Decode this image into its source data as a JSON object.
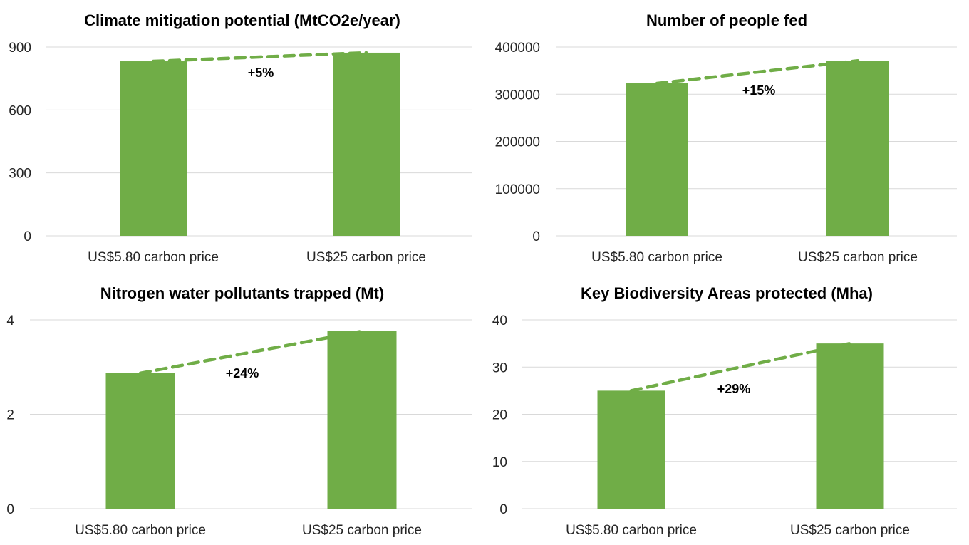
{
  "colors": {
    "bar": "#70AD47",
    "trend": "#70AD47",
    "grid": "#D9D9D9",
    "text": "#262626"
  },
  "chart_data": [
    {
      "type": "bar",
      "title": "Climate mitigation potential (MtCO2e/year)",
      "categories": [
        "US$5.80 carbon price",
        "US$25 carbon price"
      ],
      "values": [
        832,
        873
      ],
      "ylim": [
        0,
        900
      ],
      "yticks": [
        0,
        300,
        600,
        900
      ],
      "ytick_labels": [
        "0",
        "300",
        "600",
        "900"
      ],
      "xlabel": "",
      "ylabel": "",
      "grid": true,
      "trend_line": "dashed",
      "annotation": "+5%"
    },
    {
      "type": "bar",
      "title": "Number of people fed",
      "categories": [
        "US$5.80 carbon price",
        "US$25 carbon price"
      ],
      "values": [
        323000,
        371000
      ],
      "ylim": [
        0,
        400000
      ],
      "yticks": [
        0,
        100000,
        200000,
        300000,
        400000
      ],
      "ytick_labels": [
        "0",
        "100000",
        "200000",
        "300000",
        "400000"
      ],
      "xlabel": "",
      "ylabel": "",
      "grid": true,
      "trend_line": "dashed",
      "annotation": "+15%"
    },
    {
      "type": "bar",
      "title": "Nitrogen water pollutants trapped (Mt)",
      "categories": [
        "US$5.80 carbon price",
        "US$25 carbon price"
      ],
      "values": [
        2.87,
        3.76
      ],
      "ylim": [
        0,
        4
      ],
      "yticks": [
        0,
        2,
        4
      ],
      "ytick_labels": [
        "0",
        "2",
        "4"
      ],
      "xlabel": "",
      "ylabel": "",
      "grid": true,
      "trend_line": "dashed",
      "annotation": "+24%"
    },
    {
      "type": "bar",
      "title": "Key Biodiversity Areas protected (Mha)",
      "categories": [
        "US$5.80 carbon price",
        "US$25 carbon price"
      ],
      "values": [
        25,
        35
      ],
      "ylim": [
        0,
        40
      ],
      "yticks": [
        0,
        10,
        20,
        30,
        40
      ],
      "ytick_labels": [
        "0",
        "10",
        "20",
        "30",
        "40"
      ],
      "xlabel": "",
      "ylabel": "",
      "grid": true,
      "trend_line": "dashed",
      "annotation": "+29%"
    }
  ]
}
